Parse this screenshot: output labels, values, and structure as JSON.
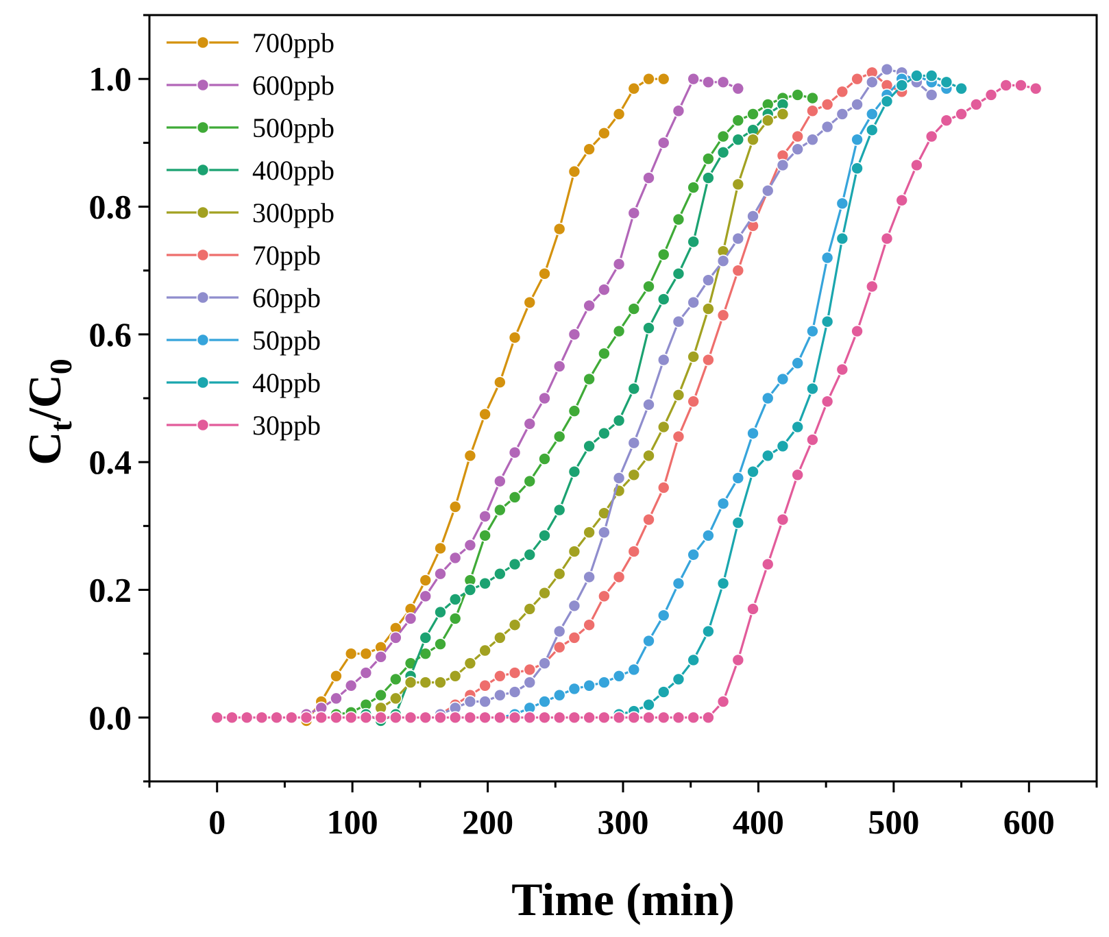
{
  "chart_data": {
    "type": "line",
    "title": "",
    "xlabel": "Time (min)",
    "ylabel": {
      "main": "C",
      "sub1": "t",
      "slash": "/C",
      "sub2": "0"
    },
    "xlim": [
      -50,
      650
    ],
    "ylim": [
      -0.1,
      1.1
    ],
    "xticks": [
      0,
      100,
      200,
      300,
      400,
      500,
      600
    ],
    "xtick_labels": [
      "0",
      "100",
      "200",
      "300",
      "400",
      "500",
      "600"
    ],
    "yticks": [
      0.0,
      0.2,
      0.4,
      0.6,
      0.8,
      1.0
    ],
    "ytick_labels": [
      "0.0",
      "0.2",
      "0.4",
      "0.6",
      "0.8",
      "1.0"
    ],
    "grid": false,
    "legend_position": "top-left",
    "series": [
      {
        "name": "700ppb",
        "color": "#D4920E",
        "x": [
          66,
          77,
          88,
          99,
          110,
          121,
          132,
          143,
          154,
          165,
          176,
          187,
          198,
          209,
          220,
          231,
          242,
          253,
          264,
          275,
          286,
          297,
          308,
          319,
          330
        ],
        "y": [
          -0.005,
          0.025,
          0.065,
          0.1,
          0.1,
          0.11,
          0.14,
          0.17,
          0.215,
          0.265,
          0.33,
          0.41,
          0.475,
          0.525,
          0.595,
          0.65,
          0.695,
          0.765,
          0.855,
          0.89,
          0.915,
          0.945,
          0.985,
          1.0,
          1.0
        ]
      },
      {
        "name": "600ppb",
        "color": "#B266B8",
        "x": [
          66,
          77,
          88,
          99,
          110,
          121,
          132,
          143,
          154,
          165,
          176,
          187,
          198,
          209,
          220,
          231,
          242,
          253,
          264,
          275,
          286,
          297,
          308,
          319,
          330,
          341,
          352,
          363,
          374,
          385
        ],
        "y": [
          0.005,
          0.015,
          0.03,
          0.05,
          0.07,
          0.095,
          0.125,
          0.155,
          0.19,
          0.225,
          0.25,
          0.27,
          0.315,
          0.37,
          0.415,
          0.46,
          0.5,
          0.55,
          0.6,
          0.645,
          0.67,
          0.71,
          0.79,
          0.845,
          0.9,
          0.95,
          1.0,
          0.995,
          0.995,
          0.985
        ]
      },
      {
        "name": "500ppb",
        "color": "#3FAA37",
        "x": [
          88,
          99,
          110,
          121,
          132,
          143,
          154,
          165,
          176,
          187,
          198,
          209,
          220,
          231,
          242,
          253,
          264,
          275,
          286,
          297,
          308,
          319,
          330,
          341,
          352,
          363,
          374,
          385,
          396,
          407,
          418,
          429,
          440
        ],
        "y": [
          0.005,
          0.008,
          0.02,
          0.035,
          0.06,
          0.085,
          0.1,
          0.115,
          0.155,
          0.215,
          0.285,
          0.325,
          0.345,
          0.37,
          0.405,
          0.44,
          0.48,
          0.53,
          0.57,
          0.605,
          0.64,
          0.675,
          0.725,
          0.78,
          0.83,
          0.875,
          0.91,
          0.935,
          0.945,
          0.96,
          0.97,
          0.975,
          0.97
        ]
      },
      {
        "name": "400ppb",
        "color": "#1BA271",
        "x": [
          110,
          121,
          132,
          143,
          154,
          165,
          176,
          187,
          198,
          209,
          220,
          231,
          242,
          253,
          264,
          275,
          286,
          297,
          308,
          319,
          330,
          341,
          352,
          363,
          374,
          385,
          396,
          407,
          418
        ],
        "y": [
          0.005,
          -0.005,
          0.005,
          0.065,
          0.125,
          0.165,
          0.185,
          0.2,
          0.21,
          0.225,
          0.24,
          0.255,
          0.285,
          0.325,
          0.385,
          0.425,
          0.445,
          0.465,
          0.515,
          0.61,
          0.655,
          0.695,
          0.745,
          0.845,
          0.885,
          0.905,
          0.92,
          0.945,
          0.96
        ]
      },
      {
        "name": "300ppb",
        "color": "#A2A121",
        "x": [
          121,
          132,
          143,
          154,
          165,
          176,
          187,
          198,
          209,
          220,
          231,
          242,
          253,
          264,
          275,
          286,
          297,
          308,
          319,
          330,
          341,
          352,
          363,
          374,
          385,
          396,
          407,
          418
        ],
        "y": [
          0.015,
          0.03,
          0.055,
          0.055,
          0.055,
          0.065,
          0.085,
          0.105,
          0.125,
          0.145,
          0.17,
          0.195,
          0.225,
          0.26,
          0.29,
          0.32,
          0.355,
          0.38,
          0.41,
          0.455,
          0.505,
          0.565,
          0.64,
          0.73,
          0.835,
          0.905,
          0.935,
          0.945
        ]
      },
      {
        "name": "70ppb",
        "color": "#EE6E6C",
        "x": [
          165,
          176,
          187,
          198,
          209,
          220,
          231,
          242,
          253,
          264,
          275,
          286,
          297,
          308,
          319,
          330,
          341,
          352,
          363,
          374,
          385,
          396,
          407,
          418,
          429,
          440,
          451,
          462,
          473,
          484,
          495,
          506
        ],
        "y": [
          0.005,
          0.02,
          0.035,
          0.05,
          0.065,
          0.07,
          0.075,
          0.085,
          0.11,
          0.125,
          0.145,
          0.19,
          0.22,
          0.26,
          0.31,
          0.36,
          0.44,
          0.495,
          0.56,
          0.63,
          0.7,
          0.77,
          0.825,
          0.88,
          0.91,
          0.95,
          0.96,
          0.98,
          1.0,
          1.01,
          0.99,
          0.98
        ]
      },
      {
        "name": "60ppb",
        "color": "#8F8DCD",
        "x": [
          165,
          176,
          187,
          198,
          209,
          220,
          231,
          242,
          253,
          264,
          275,
          286,
          297,
          308,
          319,
          330,
          341,
          352,
          363,
          374,
          385,
          396,
          407,
          418,
          429,
          440,
          451,
          462,
          473,
          484,
          495,
          506,
          517,
          528
        ],
        "y": [
          0.005,
          0.015,
          0.025,
          0.025,
          0.035,
          0.04,
          0.055,
          0.085,
          0.135,
          0.175,
          0.22,
          0.29,
          0.375,
          0.43,
          0.49,
          0.56,
          0.62,
          0.65,
          0.685,
          0.715,
          0.75,
          0.785,
          0.825,
          0.865,
          0.89,
          0.905,
          0.925,
          0.945,
          0.96,
          0.995,
          1.015,
          1.01,
          0.995,
          0.975
        ]
      },
      {
        "name": "50ppb",
        "color": "#36A4DB",
        "x": [
          209,
          220,
          231,
          242,
          253,
          264,
          275,
          286,
          297,
          308,
          319,
          330,
          341,
          352,
          363,
          374,
          385,
          396,
          407,
          418,
          429,
          440,
          451,
          462,
          473,
          484,
          495,
          506,
          517,
          528,
          539
        ],
        "y": [
          0.0,
          0.005,
          0.015,
          0.025,
          0.035,
          0.045,
          0.05,
          0.055,
          0.065,
          0.075,
          0.12,
          0.16,
          0.21,
          0.255,
          0.285,
          0.335,
          0.375,
          0.445,
          0.5,
          0.53,
          0.555,
          0.605,
          0.72,
          0.805,
          0.905,
          0.945,
          0.975,
          1.0,
          1.005,
          0.995,
          0.985
        ]
      },
      {
        "name": "40ppb",
        "color": "#1AA6AE",
        "x": [
          297,
          308,
          319,
          330,
          341,
          352,
          363,
          374,
          385,
          396,
          407,
          418,
          429,
          440,
          451,
          462,
          473,
          484,
          495,
          506,
          517,
          528,
          539,
          550
        ],
        "y": [
          0.005,
          0.01,
          0.02,
          0.04,
          0.06,
          0.09,
          0.135,
          0.21,
          0.305,
          0.385,
          0.41,
          0.425,
          0.455,
          0.515,
          0.62,
          0.75,
          0.86,
          0.92,
          0.965,
          0.99,
          1.005,
          1.005,
          0.995,
          0.985
        ]
      },
      {
        "name": "30ppb",
        "color": "#E25B9A",
        "x": [
          0,
          11,
          22,
          33,
          44,
          55,
          66,
          77,
          88,
          99,
          110,
          121,
          132,
          143,
          154,
          165,
          176,
          187,
          198,
          209,
          220,
          231,
          242,
          253,
          264,
          275,
          286,
          297,
          308,
          319,
          330,
          341,
          352,
          363,
          374,
          385,
          396,
          407,
          418,
          429,
          440,
          451,
          462,
          473,
          484,
          495,
          506,
          517,
          528,
          539,
          550,
          561,
          572,
          583,
          594,
          605
        ],
        "y": [
          0,
          0,
          0,
          0,
          0,
          0,
          0,
          0,
          0,
          0,
          0,
          0,
          0,
          0,
          0,
          0,
          0,
          0,
          0,
          0,
          0,
          0,
          0,
          0,
          0,
          0,
          0,
          0,
          0,
          0,
          0,
          0,
          0,
          0,
          0.025,
          0.09,
          0.17,
          0.24,
          0.31,
          0.38,
          0.435,
          0.495,
          0.545,
          0.605,
          0.675,
          0.75,
          0.81,
          0.865,
          0.91,
          0.935,
          0.945,
          0.96,
          0.975,
          0.99,
          0.99,
          0.985
        ]
      }
    ]
  }
}
